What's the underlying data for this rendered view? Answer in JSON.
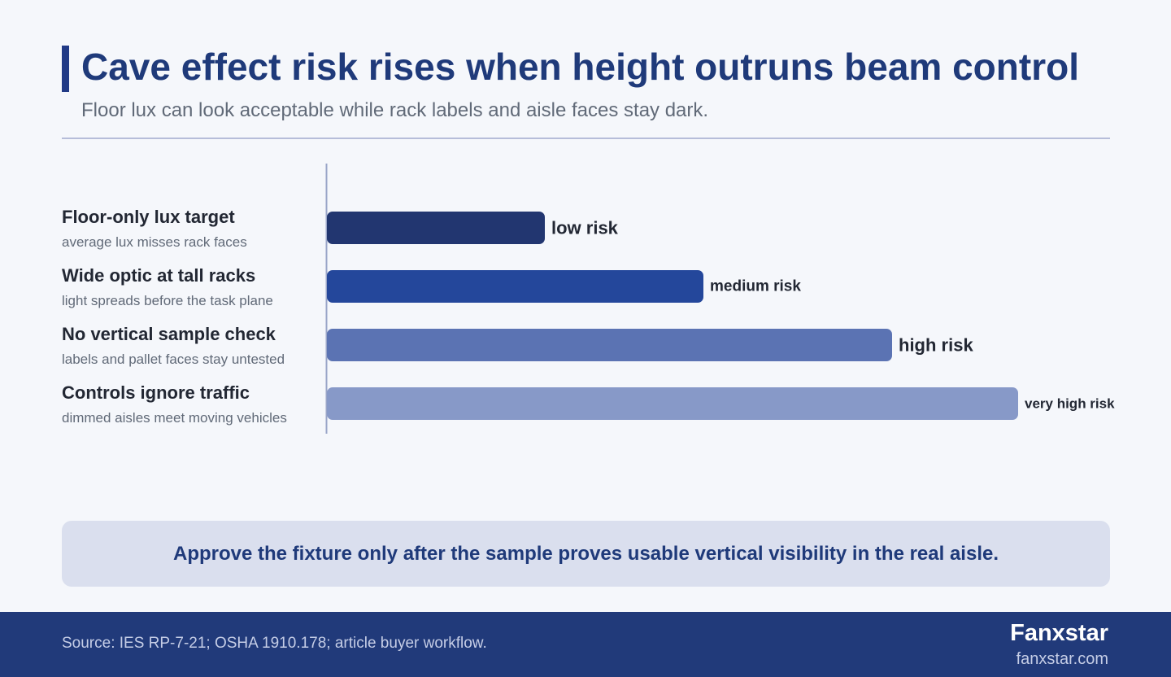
{
  "header": {
    "title": "Cave effect risk rises when height outruns beam control",
    "subtitle": "Floor lux can look acceptable while rack labels and aisle faces stay dark."
  },
  "chart_data": {
    "type": "bar",
    "orientation": "horizontal",
    "categories": [
      "Floor-only lux target",
      "Wide optic at tall racks",
      "No vertical sample check",
      "Controls ignore traffic"
    ],
    "category_notes": [
      "average lux misses rack faces",
      "light spreads before the task plane",
      "labels and pallet faces stay untested",
      "dimmed aisles meet moving vehicles"
    ],
    "values": [
      1,
      2,
      3,
      4
    ],
    "value_labels": [
      "low risk",
      "medium risk",
      "high risk",
      "very high risk"
    ],
    "colors": [
      "#223670",
      "#24479b",
      "#5b73b3",
      "#8799c8"
    ],
    "title": "Cave effect risk rises when height outruns beam control",
    "xlabel": "",
    "ylabel": "",
    "grid": false,
    "legend": "none"
  },
  "callout": {
    "text": "Approve the fixture only after the sample proves usable vertical visibility in the real aisle."
  },
  "footer": {
    "source": "Source: IES RP-7-21; OSHA 1910.178; article buyer workflow.",
    "brand": "Fanxstar",
    "url": "fanxstar.com"
  }
}
